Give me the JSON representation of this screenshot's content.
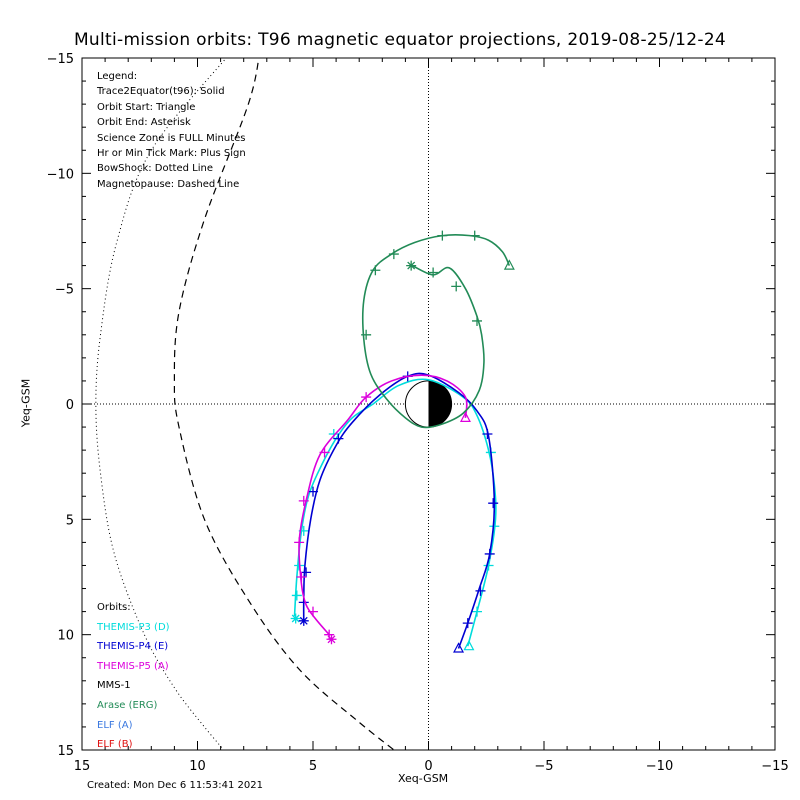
{
  "title": "Multi-mission orbits: T96 magnetic equator projections, 2019-08-25/12-24",
  "created": "Created: Mon Dec  6 11:53:41 2021",
  "legend": {
    "header": "Legend:",
    "items": [
      "Trace2Equator(t96): Solid",
      "Orbit Start: Triangle",
      "Orbit End: Asterisk",
      "Science Zone is FULL Minutes",
      "Hr or Min Tick Mark: Plus Sign",
      "BowShock: Dotted Line",
      "Magnetopause: Dashed Line"
    ]
  },
  "orbits_legend": {
    "header": "Orbits:",
    "items": [
      {
        "label": "THEMIS-P3 (D)",
        "color": "#00dcdc"
      },
      {
        "label": "THEMIS-P4 (E)",
        "color": "#0000d2"
      },
      {
        "label": "THEMIS-P5 (A)",
        "color": "#dc00dc"
      },
      {
        "label": "MMS-1",
        "color": "#000000"
      },
      {
        "label": "Arase (ERG)",
        "color": "#228b57"
      },
      {
        "label": "ELF (A)",
        "color": "#3a78e0"
      },
      {
        "label": "ELF (B)",
        "color": "#e01010"
      }
    ]
  },
  "chart_data": {
    "type": "line",
    "xlabel": "Xeq-GSM",
    "ylabel": "Yeq-GSM",
    "xlim": [
      15,
      -15
    ],
    "ylim": [
      -15,
      15
    ],
    "x_ticks": [
      15,
      10,
      5,
      0,
      -5,
      -10,
      -15
    ],
    "y_ticks": [
      -15,
      -10,
      -5,
      0,
      5,
      10,
      15
    ],
    "earth": {
      "radius": 1
    },
    "bow_shock": {
      "style": "dotted",
      "points": [
        [
          8.5,
          -15.3
        ],
        [
          12,
          -11
        ],
        [
          13.5,
          -7
        ],
        [
          14.2,
          -3
        ],
        [
          14.4,
          0
        ],
        [
          14.2,
          3
        ],
        [
          13.6,
          6.5
        ],
        [
          12.3,
          10
        ],
        [
          11,
          12.3
        ],
        [
          9.7,
          14
        ],
        [
          8.6,
          15.3
        ]
      ]
    },
    "magnetopause": {
      "style": "dashed",
      "points": [
        [
          7.3,
          -15.3
        ],
        [
          7.8,
          -13
        ],
        [
          9.7,
          -8
        ],
        [
          10.8,
          -4
        ],
        [
          11,
          -1
        ],
        [
          10.8,
          1
        ],
        [
          9.7,
          5
        ],
        [
          7.8,
          8.5
        ],
        [
          5.6,
          11.5
        ],
        [
          3,
          13.8
        ],
        [
          1.1,
          15.3
        ]
      ]
    },
    "series": [
      {
        "name": "THEMIS-P3 (D)",
        "color": "#00dcdc",
        "points": [
          [
            -1.7,
            10.5
          ],
          [
            -2.1,
            9
          ],
          [
            -2.6,
            7
          ],
          [
            -2.9,
            5
          ],
          [
            -2.85,
            3.5
          ],
          [
            -2.6,
            2
          ],
          [
            -2.1,
            0.5
          ],
          [
            -1.5,
            -0.3
          ],
          [
            0,
            -1.05
          ],
          [
            1.3,
            -0.8
          ],
          [
            2.4,
            0
          ],
          [
            3.3,
            0.6
          ],
          [
            4.0,
            1.5
          ],
          [
            4.7,
            2.8
          ],
          [
            5.2,
            4
          ],
          [
            5.5,
            5.5
          ],
          [
            5.7,
            7.5
          ],
          [
            5.8,
            9.2
          ]
        ],
        "ticks": [
          [
            -2.1,
            9
          ],
          [
            -2.6,
            7
          ],
          [
            -2.85,
            5.3
          ],
          [
            -2.7,
            2.1
          ],
          [
            4.1,
            1.3
          ],
          [
            5.4,
            5.5
          ],
          [
            5.6,
            7
          ],
          [
            5.7,
            8.3
          ]
        ],
        "start": [
          -1.75,
          10.5
        ],
        "end": [
          5.75,
          9.3
        ]
      },
      {
        "name": "THEMIS-P4 (E)",
        "color": "#0000d2",
        "points": [
          [
            -1.3,
            10.6
          ],
          [
            -1.7,
            9.5
          ],
          [
            -2.2,
            8
          ],
          [
            -2.65,
            6.5
          ],
          [
            -2.85,
            4.3
          ],
          [
            -2.6,
            1.4
          ],
          [
            -2.1,
            0.3
          ],
          [
            -1.3,
            -0.5
          ],
          [
            0,
            -1.25
          ],
          [
            0.9,
            -1.2
          ],
          [
            2.1,
            -0.4
          ],
          [
            3.3,
            0.8
          ],
          [
            4.0,
            1.8
          ],
          [
            4.7,
            3.3
          ],
          [
            5.1,
            5
          ],
          [
            5.35,
            7
          ],
          [
            5.4,
            8.4
          ],
          [
            5.4,
            9.4
          ]
        ],
        "ticks": [
          [
            -1.7,
            9.5
          ],
          [
            -2.25,
            8.1
          ],
          [
            -2.65,
            6.5
          ],
          [
            -2.8,
            4.3
          ],
          [
            -2.55,
            1.3
          ],
          [
            0.9,
            -1.2
          ],
          [
            3.9,
            1.5
          ],
          [
            5.0,
            3.8
          ],
          [
            5.3,
            7.3
          ],
          [
            5.4,
            8.6
          ]
        ],
        "start": [
          -1.3,
          10.6
        ],
        "end": [
          5.4,
          9.4
        ]
      },
      {
        "name": "THEMIS-P5 (A)",
        "color": "#dc00dc",
        "points": [
          [
            4.3,
            10.0
          ],
          [
            4.9,
            9.3
          ],
          [
            5.3,
            8.7
          ],
          [
            5.5,
            7.8
          ],
          [
            5.6,
            6
          ],
          [
            5.3,
            4.2
          ],
          [
            4.7,
            2.2
          ],
          [
            3.5,
            0.7
          ],
          [
            2.7,
            -0.3
          ],
          [
            1.6,
            -1
          ],
          [
            0.3,
            -1.25
          ],
          [
            -0.8,
            -1
          ],
          [
            -1.6,
            -0.3
          ],
          [
            -1.6,
            0.6
          ]
        ],
        "ticks": [
          [
            4.3,
            10.0
          ],
          [
            5.0,
            9.0
          ],
          [
            5.5,
            7.5
          ],
          [
            5.6,
            6
          ],
          [
            5.4,
            4.2
          ],
          [
            4.5,
            2.1
          ],
          [
            2.7,
            -0.3
          ]
        ],
        "start": [
          -1.6,
          0.6
        ],
        "end": [
          4.2,
          10.2
        ]
      },
      {
        "name": "Arase (ERG)",
        "color": "#228b57",
        "points": [
          [
            -3.5,
            -6.0
          ],
          [
            -3.2,
            -6.6
          ],
          [
            -2.6,
            -7.1
          ],
          [
            -1.8,
            -7.3
          ],
          [
            -0.6,
            -7.3
          ],
          [
            0.6,
            -7.0
          ],
          [
            1.6,
            -6.5
          ],
          [
            2.4,
            -5.8
          ],
          [
            2.8,
            -4.5
          ],
          [
            2.8,
            -2.8
          ],
          [
            2.5,
            -1.3
          ],
          [
            1.8,
            -0.2
          ],
          [
            1.0,
            0.6
          ],
          [
            0.3,
            1.0
          ],
          [
            -0.5,
            0.9
          ],
          [
            -1.5,
            0.4
          ],
          [
            -2.2,
            -0.6
          ],
          [
            -2.4,
            -1.8
          ],
          [
            -2.3,
            -3.0
          ],
          [
            -2.1,
            -3.8
          ],
          [
            -1.6,
            -5.0
          ],
          [
            -0.9,
            -5.9
          ],
          [
            -0.2,
            -5.6
          ],
          [
            0.7,
            -6.0
          ]
        ],
        "ticks": [
          [
            -2.0,
            -7.3
          ],
          [
            -0.6,
            -7.3
          ],
          [
            1.5,
            -6.5
          ],
          [
            2.3,
            -5.8
          ],
          [
            2.7,
            -3.0
          ],
          [
            -2.1,
            -3.6
          ],
          [
            -1.2,
            -5.1
          ],
          [
            -0.2,
            -5.7
          ]
        ],
        "start": [
          -3.5,
          -6.0
        ],
        "end": [
          0.75,
          -6.0
        ]
      }
    ]
  }
}
